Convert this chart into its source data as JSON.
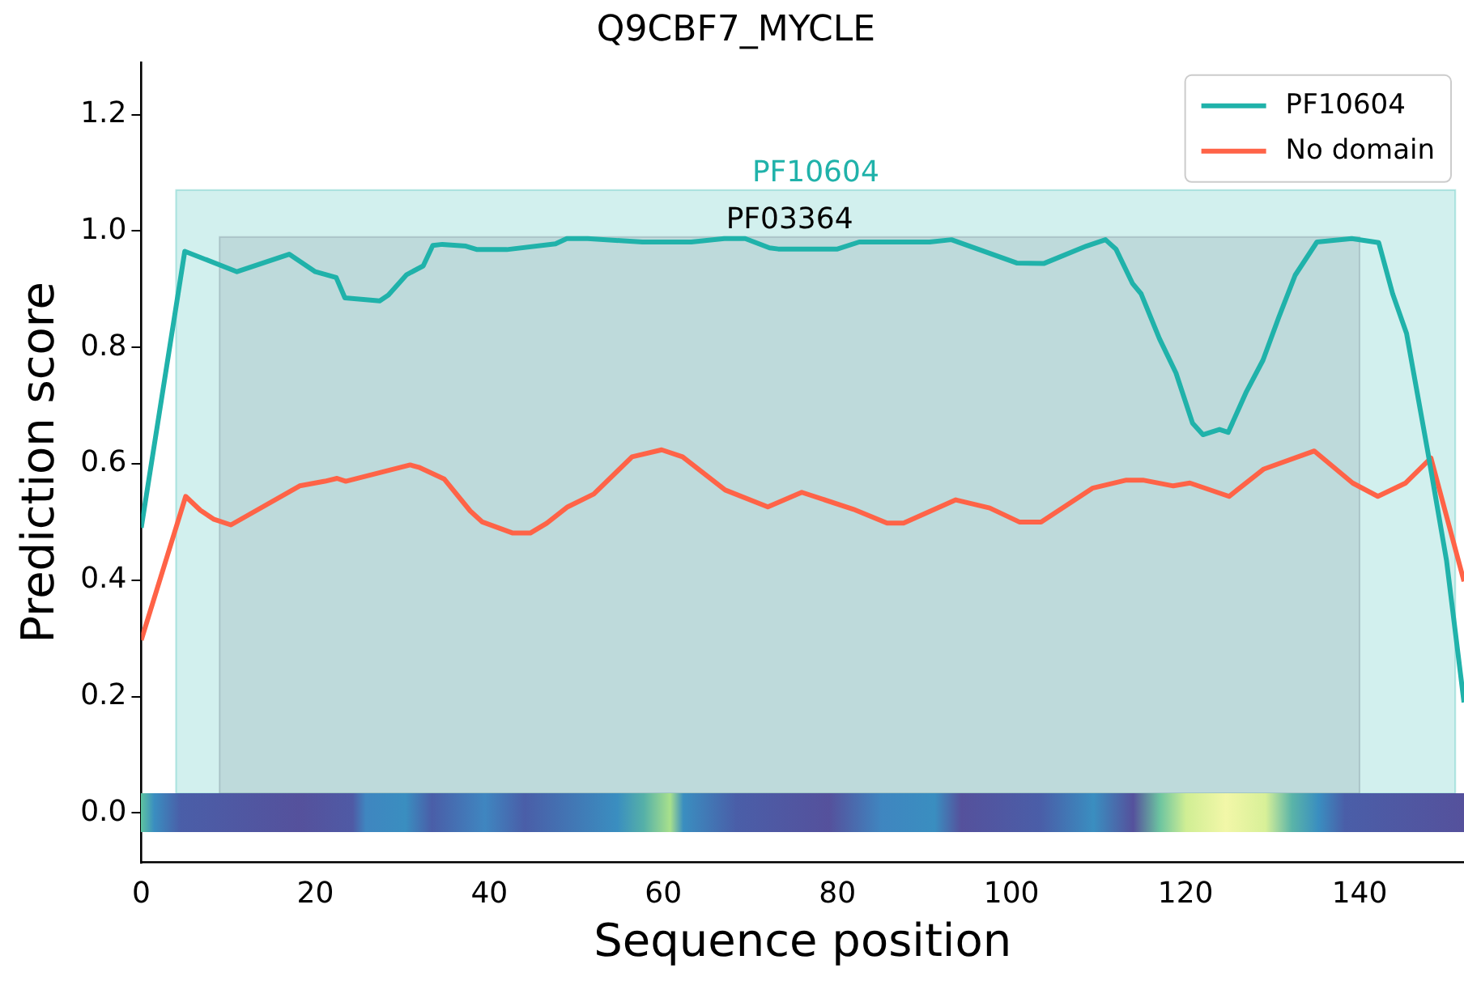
{
  "chart_data": {
    "type": "line",
    "title": "Q9CBF7_MYCLE",
    "xlabel": "Sequence position",
    "ylabel": "Prediction score",
    "xlim": [
      0,
      152
    ],
    "ylim": [
      -0.085,
      1.29
    ],
    "xticks": [
      0,
      20,
      40,
      60,
      80,
      100,
      120,
      140
    ],
    "yticks": [
      {
        "value": 0,
        "label": "0.0"
      },
      0.2,
      0.4,
      0.6,
      0.8,
      {
        "value": 1,
        "label": "1.0"
      },
      1.2
    ],
    "grid": false,
    "legend": "top right",
    "marker": "none",
    "line_style": "solid",
    "bands": [
      {
        "axis": "x",
        "from": 4,
        "to": 151,
        "label": "PF10604",
        "color": "#20b2aa"
      },
      {
        "axis": "x",
        "from": 9,
        "to": 140,
        "label": "PF03364",
        "color": "#708090"
      }
    ],
    "series": [
      {
        "name": "PF10604",
        "color": "#20b2aa",
        "x": [
          0,
          5,
          11,
          17,
          18,
          20,
          22.4,
          23.4,
          27.4,
          28.4,
          30.5,
          32.4,
          33.5,
          34.6,
          37.3,
          38.6,
          42,
          47.6,
          48.9,
          51.3,
          57.6,
          63.2,
          67,
          69.4,
          72.2,
          73.2,
          80,
          82.5,
          90.6,
          93.1,
          100.6,
          103.7,
          108.6,
          110.8,
          112,
          113.9,
          114.9,
          117,
          118.9,
          120.8,
          122,
          123.9,
          124.9,
          127,
          128.9,
          130.7,
          132.6,
          135.1,
          139.1,
          142.2,
          143.8,
          145.4,
          147.8,
          150,
          152
        ],
        "values": [
          0.49,
          0.965,
          0.93,
          0.96,
          0.95,
          0.93,
          0.92,
          0.885,
          0.88,
          0.89,
          0.925,
          0.94,
          0.975,
          0.977,
          0.974,
          0.968,
          0.968,
          0.978,
          0.987,
          0.987,
          0.981,
          0.981,
          0.987,
          0.987,
          0.971,
          0.969,
          0.969,
          0.981,
          0.981,
          0.985,
          0.945,
          0.944,
          0.974,
          0.985,
          0.969,
          0.91,
          0.892,
          0.815,
          0.756,
          0.67,
          0.65,
          0.659,
          0.654,
          0.724,
          0.778,
          0.851,
          0.924,
          0.981,
          0.987,
          0.98,
          0.892,
          0.824,
          0.624,
          0.433,
          0.19
        ]
      },
      {
        "name": "No domain",
        "color": "#ff6347",
        "x": [
          0,
          5.1,
          6.8,
          8.3,
          10.3,
          18.2,
          21.1,
          22.5,
          23.5,
          30.9,
          31.9,
          34.8,
          37.8,
          39.2,
          42.7,
          44.7,
          46.6,
          49,
          52,
          56.4,
          59.8,
          62.2,
          67.1,
          72,
          75.9,
          81.8,
          85.7,
          87.6,
          93.6,
          97.5,
          100.9,
          103.4,
          109.3,
          113.2,
          115.1,
          118.6,
          120.5,
          125,
          129,
          134.8,
          139.2,
          142.1,
          145.3,
          148.2,
          152
        ],
        "values": [
          0.297,
          0.544,
          0.52,
          0.505,
          0.495,
          0.562,
          0.57,
          0.575,
          0.57,
          0.598,
          0.594,
          0.574,
          0.519,
          0.5,
          0.481,
          0.481,
          0.498,
          0.526,
          0.548,
          0.612,
          0.624,
          0.612,
          0.555,
          0.526,
          0.551,
          0.522,
          0.498,
          0.498,
          0.538,
          0.524,
          0.5,
          0.5,
          0.558,
          0.572,
          0.572,
          0.562,
          0.567,
          0.544,
          0.591,
          0.622,
          0.567,
          0.544,
          0.567,
          0.61,
          0.398
        ]
      }
    ]
  }
}
